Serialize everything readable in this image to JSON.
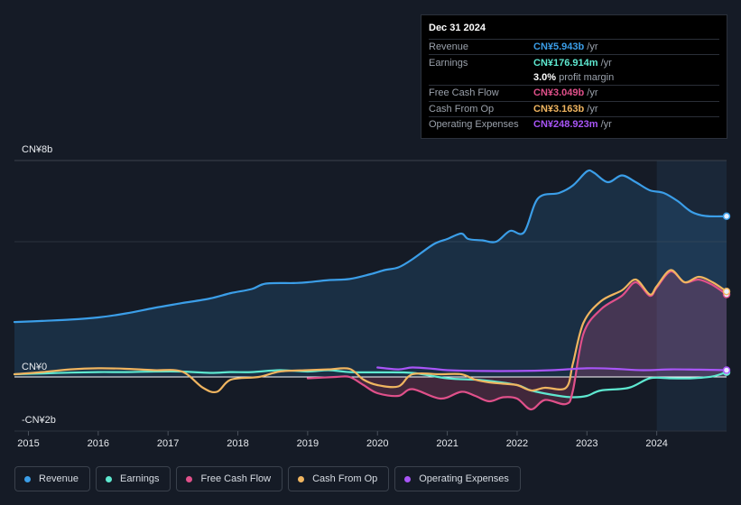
{
  "tooltip": {
    "date": "Dec 31 2024",
    "rows": [
      {
        "name": "Revenue",
        "value": "CN¥5.943b",
        "unit": "/yr",
        "color": "#3b9ee8"
      },
      {
        "name": "Earnings",
        "value": "CN¥176.914m",
        "unit": "/yr",
        "color": "#5ee8d0"
      },
      {
        "name": "",
        "value": "3.0%",
        "unit": "profit margin",
        "color": "#ffffff"
      },
      {
        "name": "Free Cash Flow",
        "value": "CN¥3.049b",
        "unit": "/yr",
        "color": "#e0508a"
      },
      {
        "name": "Cash From Op",
        "value": "CN¥3.163b",
        "unit": "/yr",
        "color": "#f0b560"
      },
      {
        "name": "Operating Expenses",
        "value": "CN¥248.923m",
        "unit": "/yr",
        "color": "#a855f7"
      }
    ]
  },
  "legend": [
    {
      "label": "Revenue",
      "color": "#3b9ee8"
    },
    {
      "label": "Earnings",
      "color": "#5ee8d0"
    },
    {
      "label": "Free Cash Flow",
      "color": "#e0508a"
    },
    {
      "label": "Cash From Op",
      "color": "#f0b560"
    },
    {
      "label": "Operating Expenses",
      "color": "#a855f7"
    }
  ],
  "chart_data": {
    "type": "area",
    "title": "",
    "xlabel": "",
    "ylabel": "",
    "y_tick_labels": {
      "top": "CN¥8b",
      "zero": "CN¥0",
      "bottom": "-CN¥2b"
    },
    "ylim": [
      -2,
      8
    ],
    "xlim": [
      2014.8,
      2025.0
    ],
    "x_ticks": [
      2015,
      2016,
      2017,
      2018,
      2019,
      2020,
      2021,
      2022,
      2023,
      2024
    ],
    "highlight_from": 2024.0,
    "unit": "CN¥ billions",
    "series": [
      {
        "name": "Revenue",
        "color": "#3b9ee8",
        "fill": true,
        "points": [
          [
            2014.8,
            2.03
          ],
          [
            2015.2,
            2.07
          ],
          [
            2015.6,
            2.12
          ],
          [
            2016.0,
            2.2
          ],
          [
            2016.4,
            2.35
          ],
          [
            2016.8,
            2.55
          ],
          [
            2017.2,
            2.73
          ],
          [
            2017.6,
            2.9
          ],
          [
            2017.9,
            3.1
          ],
          [
            2018.2,
            3.25
          ],
          [
            2018.4,
            3.45
          ],
          [
            2018.8,
            3.47
          ],
          [
            2019.0,
            3.5
          ],
          [
            2019.3,
            3.58
          ],
          [
            2019.6,
            3.62
          ],
          [
            2019.9,
            3.8
          ],
          [
            2020.1,
            3.95
          ],
          [
            2020.3,
            4.05
          ],
          [
            2020.5,
            4.35
          ],
          [
            2020.8,
            4.9
          ],
          [
            2021.0,
            5.1
          ],
          [
            2021.2,
            5.3
          ],
          [
            2021.3,
            5.1
          ],
          [
            2021.5,
            5.05
          ],
          [
            2021.7,
            5.0
          ],
          [
            2021.9,
            5.4
          ],
          [
            2022.1,
            5.35
          ],
          [
            2022.3,
            6.6
          ],
          [
            2022.6,
            6.8
          ],
          [
            2022.8,
            7.08
          ],
          [
            2023.0,
            7.6
          ],
          [
            2023.1,
            7.55
          ],
          [
            2023.3,
            7.2
          ],
          [
            2023.5,
            7.45
          ],
          [
            2023.7,
            7.2
          ],
          [
            2023.9,
            6.9
          ],
          [
            2024.1,
            6.8
          ],
          [
            2024.3,
            6.5
          ],
          [
            2024.5,
            6.1
          ],
          [
            2024.7,
            5.95
          ],
          [
            2025.0,
            5.94
          ]
        ]
      },
      {
        "name": "Earnings",
        "color": "#5ee8d0",
        "fill": false,
        "points": [
          [
            2014.8,
            0.1
          ],
          [
            2015.2,
            0.13
          ],
          [
            2015.6,
            0.16
          ],
          [
            2016.0,
            0.18
          ],
          [
            2016.4,
            0.18
          ],
          [
            2016.8,
            0.2
          ],
          [
            2017.2,
            0.2
          ],
          [
            2017.6,
            0.15
          ],
          [
            2017.9,
            0.18
          ],
          [
            2018.2,
            0.18
          ],
          [
            2018.6,
            0.25
          ],
          [
            2019.0,
            0.2
          ],
          [
            2019.3,
            0.25
          ],
          [
            2019.6,
            0.18
          ],
          [
            2020.0,
            0.17
          ],
          [
            2020.5,
            0.15
          ],
          [
            2021.0,
            -0.05
          ],
          [
            2021.5,
            -0.12
          ],
          [
            2022.0,
            -0.3
          ],
          [
            2022.2,
            -0.5
          ],
          [
            2022.6,
            -0.7
          ],
          [
            2022.8,
            -0.75
          ],
          [
            2023.0,
            -0.7
          ],
          [
            2023.2,
            -0.5
          ],
          [
            2023.6,
            -0.4
          ],
          [
            2023.9,
            -0.05
          ],
          [
            2024.2,
            -0.05
          ],
          [
            2024.5,
            -0.05
          ],
          [
            2024.8,
            0.02
          ],
          [
            2025.0,
            0.18
          ]
        ]
      },
      {
        "name": "Free Cash Flow",
        "color": "#e0508a",
        "fill": true,
        "points": [
          [
            2019.0,
            -0.05
          ],
          [
            2019.4,
            0.0
          ],
          [
            2019.6,
            0.0
          ],
          [
            2019.8,
            -0.3
          ],
          [
            2020.0,
            -0.6
          ],
          [
            2020.3,
            -0.7
          ],
          [
            2020.5,
            -0.45
          ],
          [
            2020.9,
            -0.8
          ],
          [
            2021.2,
            -0.55
          ],
          [
            2021.4,
            -0.7
          ],
          [
            2021.6,
            -0.9
          ],
          [
            2021.8,
            -0.75
          ],
          [
            2022.0,
            -0.8
          ],
          [
            2022.2,
            -1.2
          ],
          [
            2022.4,
            -0.85
          ],
          [
            2022.7,
            -1.0
          ],
          [
            2022.8,
            -0.5
          ],
          [
            2022.95,
            1.6
          ],
          [
            2023.2,
            2.5
          ],
          [
            2023.5,
            3.0
          ],
          [
            2023.7,
            3.5
          ],
          [
            2023.9,
            3.0
          ],
          [
            2024.0,
            3.3
          ],
          [
            2024.2,
            3.9
          ],
          [
            2024.4,
            3.5
          ],
          [
            2024.6,
            3.6
          ],
          [
            2024.8,
            3.4
          ],
          [
            2025.0,
            3.05
          ]
        ]
      },
      {
        "name": "Cash From Op",
        "color": "#f0b560",
        "fill": false,
        "points": [
          [
            2014.8,
            0.1
          ],
          [
            2015.2,
            0.18
          ],
          [
            2015.6,
            0.28
          ],
          [
            2016.0,
            0.32
          ],
          [
            2016.4,
            0.3
          ],
          [
            2016.8,
            0.25
          ],
          [
            2017.2,
            0.2
          ],
          [
            2017.5,
            -0.4
          ],
          [
            2017.7,
            -0.55
          ],
          [
            2017.9,
            -0.1
          ],
          [
            2018.3,
            0.0
          ],
          [
            2018.6,
            0.2
          ],
          [
            2019.0,
            0.25
          ],
          [
            2019.3,
            0.28
          ],
          [
            2019.6,
            0.3
          ],
          [
            2019.8,
            -0.1
          ],
          [
            2020.0,
            -0.3
          ],
          [
            2020.3,
            -0.35
          ],
          [
            2020.5,
            0.1
          ],
          [
            2020.9,
            0.1
          ],
          [
            2021.2,
            0.1
          ],
          [
            2021.4,
            -0.1
          ],
          [
            2021.6,
            -0.2
          ],
          [
            2021.8,
            -0.25
          ],
          [
            2022.0,
            -0.3
          ],
          [
            2022.2,
            -0.5
          ],
          [
            2022.4,
            -0.4
          ],
          [
            2022.7,
            -0.4
          ],
          [
            2022.8,
            0.5
          ],
          [
            2022.95,
            2.0
          ],
          [
            2023.2,
            2.8
          ],
          [
            2023.5,
            3.2
          ],
          [
            2023.7,
            3.6
          ],
          [
            2023.9,
            3.05
          ],
          [
            2024.0,
            3.35
          ],
          [
            2024.2,
            3.95
          ],
          [
            2024.4,
            3.5
          ],
          [
            2024.6,
            3.7
          ],
          [
            2024.8,
            3.5
          ],
          [
            2025.0,
            3.16
          ]
        ]
      },
      {
        "name": "Operating Expenses",
        "color": "#a855f7",
        "fill": false,
        "points": [
          [
            2020.0,
            0.35
          ],
          [
            2020.3,
            0.28
          ],
          [
            2020.5,
            0.35
          ],
          [
            2020.8,
            0.3
          ],
          [
            2021.0,
            0.25
          ],
          [
            2021.5,
            0.22
          ],
          [
            2022.0,
            0.22
          ],
          [
            2022.5,
            0.25
          ],
          [
            2023.0,
            0.32
          ],
          [
            2023.4,
            0.3
          ],
          [
            2023.8,
            0.25
          ],
          [
            2024.2,
            0.28
          ],
          [
            2024.6,
            0.27
          ],
          [
            2025.0,
            0.25
          ]
        ]
      }
    ]
  }
}
